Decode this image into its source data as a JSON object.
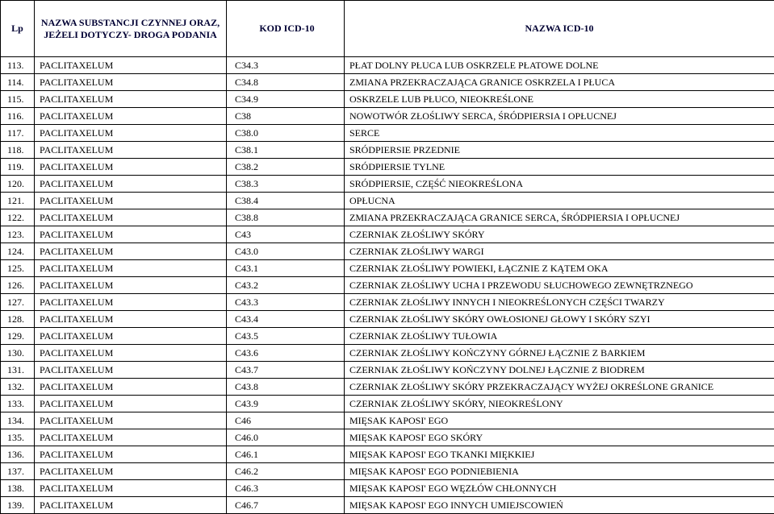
{
  "headers": {
    "lp": "Lp",
    "substance": "NAZWA SUBSTANCJI CZYNNEJ ORAZ, JEŻELI DOTYCZY- DROGA PODANIA",
    "code": "KOD ICD-10",
    "name": "NAZWA ICD-10"
  },
  "rows": [
    {
      "lp": "113.",
      "sub": "PACLITAXELUM",
      "code": "C34.3",
      "name": "PŁAT DOLNY PŁUCA LUB OSKRZELE PŁATOWE DOLNE"
    },
    {
      "lp": "114.",
      "sub": "PACLITAXELUM",
      "code": "C34.8",
      "name": "ZMIANA PRZEKRACZAJĄCA GRANICE OSKRZELA I PŁUCA"
    },
    {
      "lp": "115.",
      "sub": "PACLITAXELUM",
      "code": "C34.9",
      "name": "OSKRZELE LUB PŁUCO, NIEOKREŚLONE"
    },
    {
      "lp": "116.",
      "sub": "PACLITAXELUM",
      "code": "C38",
      "name": "NOWOTWÓR ZŁOŚLIWY SERCA, ŚRÓDPIERSIA I OPŁUCNEJ"
    },
    {
      "lp": "117.",
      "sub": "PACLITAXELUM",
      "code": "C38.0",
      "name": "SERCE"
    },
    {
      "lp": "118.",
      "sub": "PACLITAXELUM",
      "code": "C38.1",
      "name": "SRÓDPIERSIE PRZEDNIE"
    },
    {
      "lp": "119.",
      "sub": "PACLITAXELUM",
      "code": "C38.2",
      "name": "SRÓDPIERSIE TYLNE"
    },
    {
      "lp": "120.",
      "sub": "PACLITAXELUM",
      "code": "C38.3",
      "name": "SRÓDPIERSIE, CZĘŚĆ NIEOKREŚLONA"
    },
    {
      "lp": "121.",
      "sub": "PACLITAXELUM",
      "code": "C38.4",
      "name": "OPŁUCNA"
    },
    {
      "lp": "122.",
      "sub": "PACLITAXELUM",
      "code": "C38.8",
      "name": "ZMIANA PRZEKRACZAJĄCA GRANICE SERCA, ŚRÓDPIERSIA I OPŁUCNEJ"
    },
    {
      "lp": "123.",
      "sub": "PACLITAXELUM",
      "code": "C43",
      "name": "CZERNIAK ZŁOŚLIWY SKÓRY"
    },
    {
      "lp": "124.",
      "sub": "PACLITAXELUM",
      "code": "C43.0",
      "name": "CZERNIAK ZŁOŚLIWY WARGI"
    },
    {
      "lp": "125.",
      "sub": "PACLITAXELUM",
      "code": "C43.1",
      "name": "CZERNIAK ZŁOŚLIWY POWIEKI, ŁĄCZNIE Z KĄTEM OKA"
    },
    {
      "lp": "126.",
      "sub": "PACLITAXELUM",
      "code": "C43.2",
      "name": "CZERNIAK ZŁOŚLIWY UCHA I PRZEWODU SŁUCHOWEGO ZEWNĘTRZNEGO"
    },
    {
      "lp": "127.",
      "sub": "PACLITAXELUM",
      "code": "C43.3",
      "name": "CZERNIAK ZŁOŚLIWY INNYCH I NIEOKREŚLONYCH CZĘŚCI TWARZY"
    },
    {
      "lp": "128.",
      "sub": "PACLITAXELUM",
      "code": "C43.4",
      "name": "CZERNIAK ZŁOŚLIWY SKÓRY OWŁOSIONEJ GŁOWY I SKÓRY SZYI"
    },
    {
      "lp": "129.",
      "sub": "PACLITAXELUM",
      "code": "C43.5",
      "name": "CZERNIAK ZŁOŚLIWY TUŁOWIA"
    },
    {
      "lp": "130.",
      "sub": "PACLITAXELUM",
      "code": "C43.6",
      "name": "CZERNIAK ZŁOŚLIWY KOŃCZYNY GÓRNEJ ŁĄCZNIE Z BARKIEM"
    },
    {
      "lp": "131.",
      "sub": "PACLITAXELUM",
      "code": "C43.7",
      "name": "CZERNIAK ZŁOŚLIWY KOŃCZYNY DOLNEJ ŁĄCZNIE Z BIODREM"
    },
    {
      "lp": "132.",
      "sub": "PACLITAXELUM",
      "code": "C43.8",
      "name": "CZERNIAK ZŁOŚLIWY SKÓRY PRZEKRACZAJĄCY WYŻEJ OKREŚLONE GRANICE"
    },
    {
      "lp": "133.",
      "sub": "PACLITAXELUM",
      "code": "C43.9",
      "name": "CZERNIAK ZŁOŚLIWY SKÓRY, NIEOKREŚLONY"
    },
    {
      "lp": "134.",
      "sub": "PACLITAXELUM",
      "code": "C46",
      "name": "MIĘSAK KAPOSI' EGO"
    },
    {
      "lp": "135.",
      "sub": "PACLITAXELUM",
      "code": "C46.0",
      "name": "MIĘSAK KAPOSI' EGO SKÓRY"
    },
    {
      "lp": "136.",
      "sub": "PACLITAXELUM",
      "code": "C46.1",
      "name": "MIĘSAK KAPOSI' EGO TKANKI MIĘKKIEJ"
    },
    {
      "lp": "137.",
      "sub": "PACLITAXELUM",
      "code": "C46.2",
      "name": "MIĘSAK KAPOSI' EGO PODNIEBIENIA"
    },
    {
      "lp": "138.",
      "sub": "PACLITAXELUM",
      "code": "C46.3",
      "name": "MIĘSAK KAPOSI' EGO WĘZŁÓW CHŁONNYCH"
    },
    {
      "lp": "139.",
      "sub": "PACLITAXELUM",
      "code": "C46.7",
      "name": "MIĘSAK KAPOSI' EGO INNYCH UMIEJSCOWIEŃ"
    }
  ]
}
